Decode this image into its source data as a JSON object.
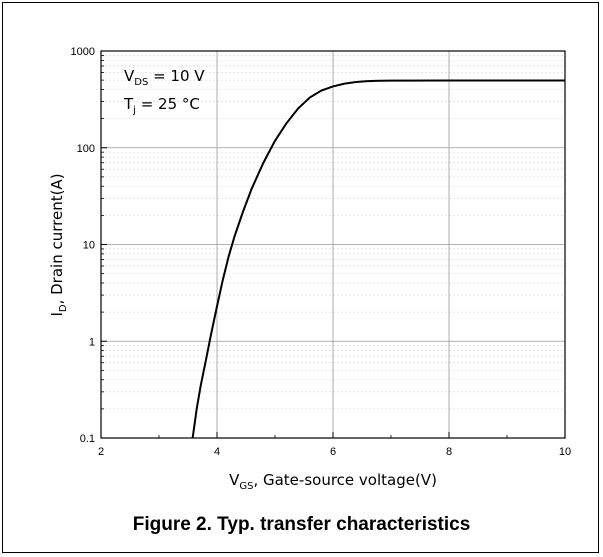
{
  "caption": "Figure 2. Typ. transfer characteristics",
  "chart_data": {
    "type": "line",
    "x_scale": "linear",
    "y_scale": "log",
    "xlim": [
      2,
      10
    ],
    "ylim": [
      0.1,
      1000
    ],
    "x_ticks": [
      2,
      4,
      6,
      8,
      10
    ],
    "x_tick_labels": [
      "2",
      "4",
      "6",
      "8",
      "10"
    ],
    "y_ticks": [
      0.1,
      1,
      10,
      100,
      1000
    ],
    "y_tick_labels": [
      "0.1",
      "1",
      "10",
      "100",
      "1000"
    ],
    "xlabel": {
      "main": "V",
      "sub": "GS",
      "rest": ", Gate-source voltage(V)"
    },
    "ylabel": {
      "main": "I",
      "sub": "D",
      "rest": ", Drain current(A)"
    },
    "annotations": [
      {
        "main": "V",
        "sub": "DS",
        "rest": " = 10 V"
      },
      {
        "main": "T",
        "sub": "j",
        "rest": " = 25 °C"
      }
    ],
    "grid": true,
    "series": [
      {
        "color": "#000000",
        "x": [
          3.58,
          3.65,
          3.72,
          3.8,
          3.9,
          4.0,
          4.1,
          4.2,
          4.3,
          4.45,
          4.6,
          4.8,
          5.0,
          5.2,
          5.4,
          5.6,
          5.8,
          6.0,
          6.2,
          6.4,
          6.6,
          6.8,
          7.0,
          8.0,
          9.0,
          10.0
        ],
        "y": [
          0.1,
          0.2,
          0.35,
          0.6,
          1.2,
          2.3,
          4.3,
          7.5,
          12,
          22,
          38,
          70,
          118,
          180,
          255,
          330,
          390,
          430,
          460,
          478,
          488,
          492,
          494,
          495,
          495,
          495
        ]
      }
    ]
  }
}
